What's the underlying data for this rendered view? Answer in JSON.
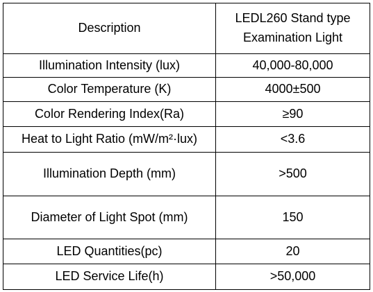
{
  "table": {
    "header": [
      "Description",
      [
        "LEDL260 Stand type",
        "Examination Light"
      ]
    ],
    "rows": [
      [
        "Illumination Intensity (lux)",
        "40,000-80,000"
      ],
      [
        "Color Temperature (K)",
        "4000±500"
      ],
      [
        "Color Rendering Index(Ra)",
        "≥90"
      ],
      [
        "Heat to Light Ratio (mW/m²·lux)",
        "<3.6"
      ],
      [
        "Illumination Depth (mm)",
        ">500"
      ],
      [
        "Diameter of Light Spot (mm)",
        "150"
      ],
      [
        "LED Quantities(pc)",
        "20"
      ],
      [
        "LED Service Life(h)",
        ">50,000"
      ]
    ]
  }
}
